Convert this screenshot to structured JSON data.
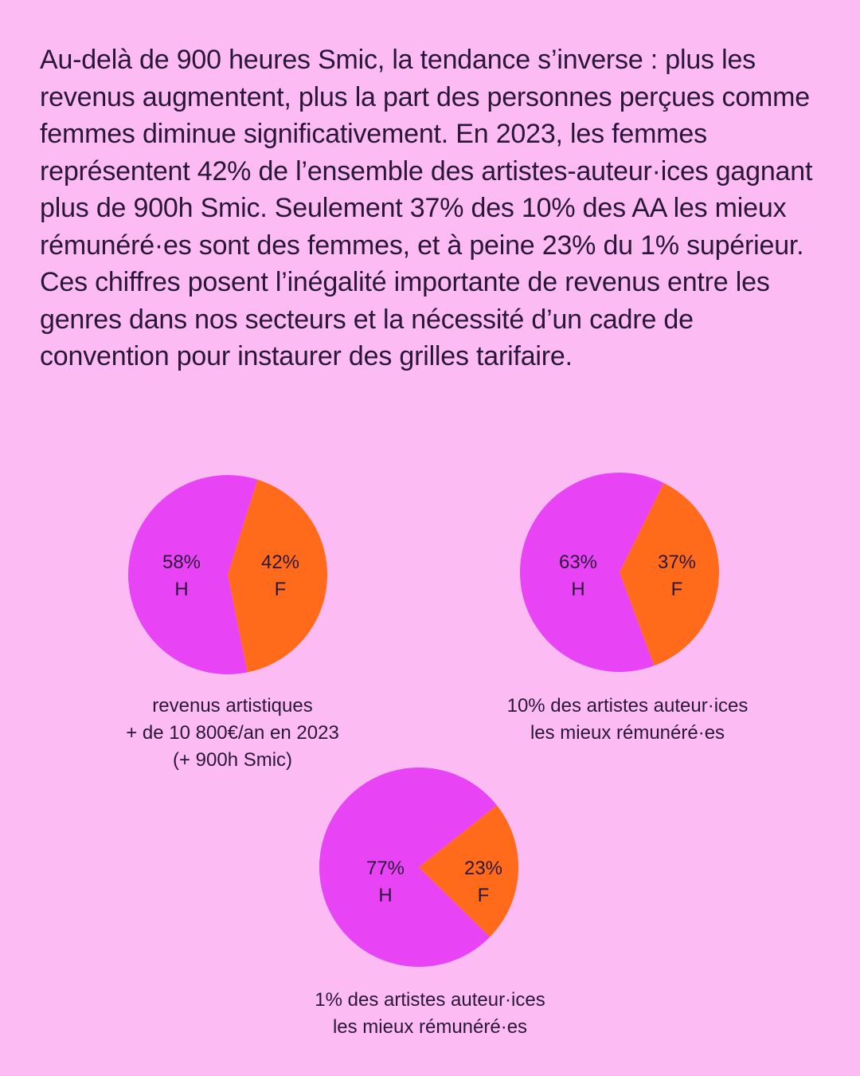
{
  "intro": {
    "text": "Au-delà de 900 heures Smic, la tendance s’inverse : plus les revenus augmentent, plus la part des personnes perçues comme femmes diminue significativement. En 2023, les femmes représentent 42% de l’ensemble des artistes-auteur·ices gagnant plus de 900h Smic. Seulement 37% des 10% des AA les mieux rémunéré·es sont des femmes, et à peine 23% du 1% supérieur. Ces chiffres posent l’inégalité importante de revenus entre les genres dans nos secteurs et la nécessité d’un cadre de convention pour instaurer des grilles tarifaire."
  },
  "colors": {
    "background": "#fcbcf3",
    "H": "#e843f5",
    "F": "#ff6b1a",
    "text": "#2a1738"
  },
  "chart_data": [
    {
      "type": "pie",
      "caption": [
        "revenus artistiques",
        "+ de 10 800€/an en 2023",
        "(+ 900h Smic)"
      ],
      "slices": [
        {
          "name": "H",
          "value": 58,
          "label": "58%"
        },
        {
          "name": "F",
          "value": 42,
          "label": "42%"
        }
      ]
    },
    {
      "type": "pie",
      "caption": [
        "10% des artistes auteur·ices",
        "les mieux rémunéré·es"
      ],
      "slices": [
        {
          "name": "H",
          "value": 63,
          "label": "63%"
        },
        {
          "name": "F",
          "value": 37,
          "label": "37%"
        }
      ]
    },
    {
      "type": "pie",
      "caption": [
        "1% des artistes auteur·ices",
        "les mieux rémunéré·es"
      ],
      "slices": [
        {
          "name": "H",
          "value": 77,
          "label": "77%"
        },
        {
          "name": "F",
          "value": 23,
          "label": "23%"
        }
      ]
    }
  ]
}
